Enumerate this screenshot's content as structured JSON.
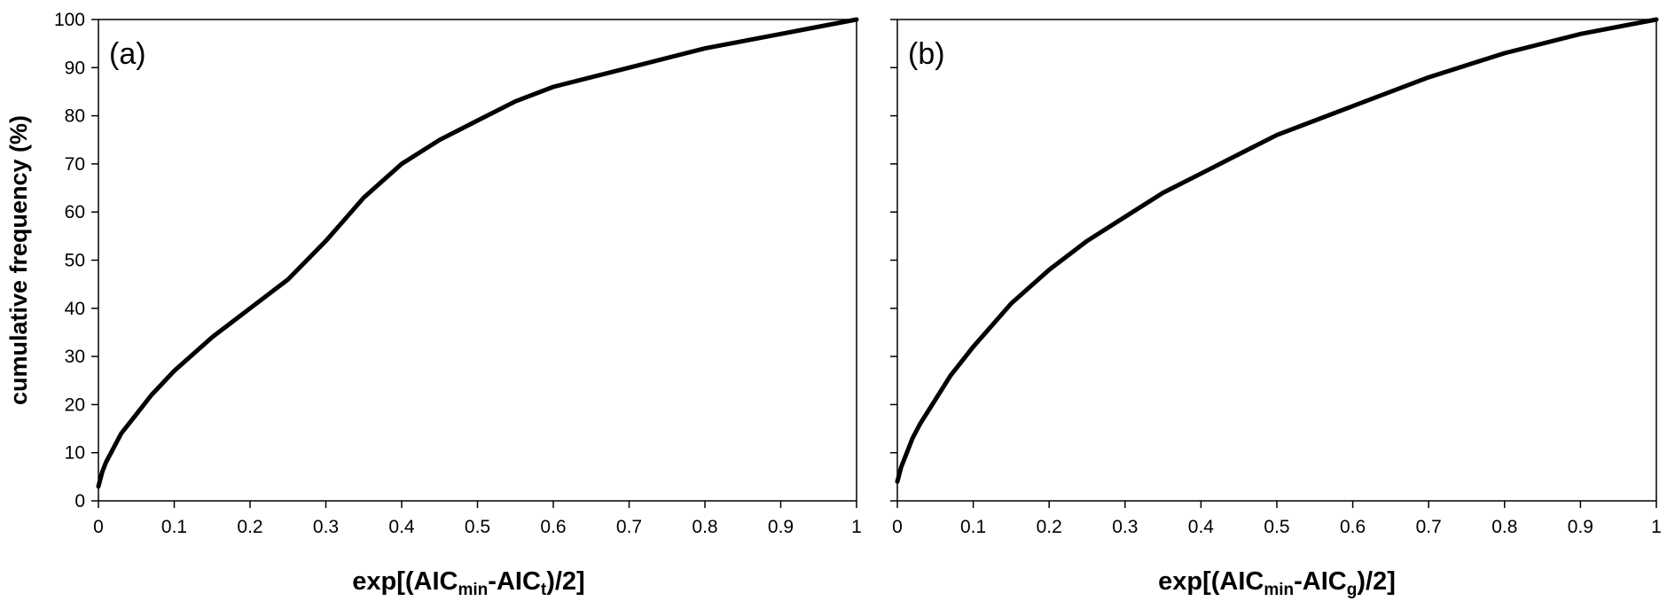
{
  "chart_data": [
    {
      "type": "line",
      "panel_label": "(a)",
      "ylabel": "cumulative frequency (%)",
      "xlabel": {
        "prefix": "exp[(AIC",
        "sub1": "min",
        "middle": "-AIC",
        "sub2": "t",
        "suffix": ")/2]"
      },
      "xlim": [
        0,
        1
      ],
      "ylim": [
        0,
        100
      ],
      "xticks": [
        "0",
        "0.1",
        "0.2",
        "0.3",
        "0.4",
        "0.5",
        "0.6",
        "0.7",
        "0.8",
        "0.9",
        "1"
      ],
      "yticks": [
        "0",
        "10",
        "20",
        "30",
        "40",
        "50",
        "60",
        "70",
        "80",
        "90",
        "100"
      ],
      "grid": false,
      "series": [
        {
          "color": "#000000",
          "x": [
            0,
            0.005,
            0.01,
            0.02,
            0.03,
            0.05,
            0.07,
            0.1,
            0.15,
            0.2,
            0.25,
            0.3,
            0.35,
            0.4,
            0.45,
            0.5,
            0.55,
            0.6,
            0.7,
            0.8,
            0.9,
            1.0
          ],
          "y": [
            3,
            6,
            8,
            11,
            14,
            18,
            22,
            27,
            34,
            40,
            46,
            54,
            63,
            70,
            75,
            79,
            83,
            86,
            90,
            94,
            97,
            100
          ]
        }
      ]
    },
    {
      "type": "line",
      "panel_label": "(b)",
      "xlabel": {
        "prefix": "exp[(AIC",
        "sub1": "min",
        "middle": "-AIC",
        "sub2": "g",
        "suffix": ")/2]"
      },
      "xlim": [
        0,
        1
      ],
      "ylim": [
        0,
        100
      ],
      "xticks": [
        "0",
        "0.1",
        "0.2",
        "0.3",
        "0.4",
        "0.5",
        "0.6",
        "0.7",
        "0.8",
        "0.9",
        "1"
      ],
      "grid": false,
      "series": [
        {
          "color": "#000000",
          "x": [
            0,
            0.005,
            0.01,
            0.02,
            0.03,
            0.05,
            0.07,
            0.1,
            0.15,
            0.2,
            0.25,
            0.3,
            0.35,
            0.4,
            0.45,
            0.5,
            0.55,
            0.6,
            0.7,
            0.8,
            0.9,
            1.0
          ],
          "y": [
            4,
            7,
            9,
            13,
            16,
            21,
            26,
            32,
            41,
            48,
            54,
            59,
            64,
            68,
            72,
            76,
            79,
            82,
            88,
            93,
            97,
            100
          ]
        }
      ]
    }
  ]
}
